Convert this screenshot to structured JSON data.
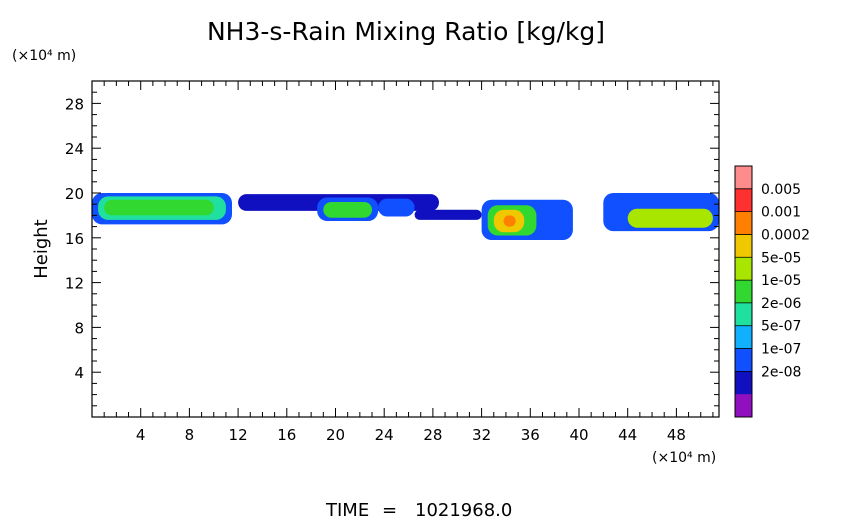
{
  "chart_data": {
    "type": "heatmap",
    "title": "NH3-s-Rain Mixing Ratio [kg/kg]",
    "ylabel": "Height",
    "y_unit": "(×10⁴ m)",
    "x_unit": "(×10⁴ m)",
    "xlim": [
      0,
      51.5
    ],
    "ylim": [
      0,
      30
    ],
    "x_ticks": [
      "4",
      "8",
      "12",
      "16",
      "20",
      "24",
      "28",
      "32",
      "36",
      "40",
      "44",
      "48"
    ],
    "y_ticks": [
      "4",
      "8",
      "12",
      "16",
      "20",
      "24",
      "28"
    ],
    "colorbar": {
      "labels": [
        "0.005",
        "0.001",
        "0.0002",
        "5e-05",
        "1e-05",
        "2e-06",
        "5e-07",
        "1e-07",
        "2e-08"
      ],
      "colors": [
        "#ff8c8c",
        "#ff3030",
        "#ff8000",
        "#f0c800",
        "#a8e600",
        "#30d830",
        "#20e0a0",
        "#10b0ff",
        "#1050ff",
        "#1010c0",
        "#9010c0"
      ]
    },
    "regions": [
      {
        "x": [
          0,
          11.5
        ],
        "y": [
          17.2,
          20
        ],
        "level": "1e-07"
      },
      {
        "x": [
          0.5,
          11
        ],
        "y": [
          17.6,
          19.7
        ],
        "level": "2e-06"
      },
      {
        "x": [
          1,
          10
        ],
        "y": [
          18,
          19.4
        ],
        "level": "1e-05"
      },
      {
        "x": [
          12,
          28.5
        ],
        "y": [
          18.4,
          19.9
        ],
        "level": "2e-08"
      },
      {
        "x": [
          18.5,
          23.5
        ],
        "y": [
          17.5,
          19.6
        ],
        "level": "1e-07"
      },
      {
        "x": [
          19,
          23
        ],
        "y": [
          17.8,
          19.2
        ],
        "level": "1e-05"
      },
      {
        "x": [
          23.5,
          26.5
        ],
        "y": [
          17.9,
          19.5
        ],
        "level": "1e-07"
      },
      {
        "x": [
          26.5,
          32
        ],
        "y": [
          17.6,
          18.5
        ],
        "level": "2e-08"
      },
      {
        "x": [
          32,
          39.5
        ],
        "y": [
          15.8,
          19.4
        ],
        "level": "1e-07"
      },
      {
        "x": [
          32.5,
          36.5
        ],
        "y": [
          16.2,
          18.9
        ],
        "level": "1e-05"
      },
      {
        "x": [
          33,
          35.5
        ],
        "y": [
          16.5,
          18.5
        ],
        "level": "0.0002"
      },
      {
        "x": [
          33.8,
          34.8
        ],
        "y": [
          17,
          18
        ],
        "level": "0.001"
      },
      {
        "x": [
          42,
          51.5
        ],
        "y": [
          16.6,
          20
        ],
        "level": "1e-07"
      },
      {
        "x": [
          44,
          51
        ],
        "y": [
          16.9,
          18.6
        ],
        "level": "5e-05"
      }
    ]
  },
  "footer": {
    "time_label": "TIME",
    "time_value": "1021968.0"
  }
}
